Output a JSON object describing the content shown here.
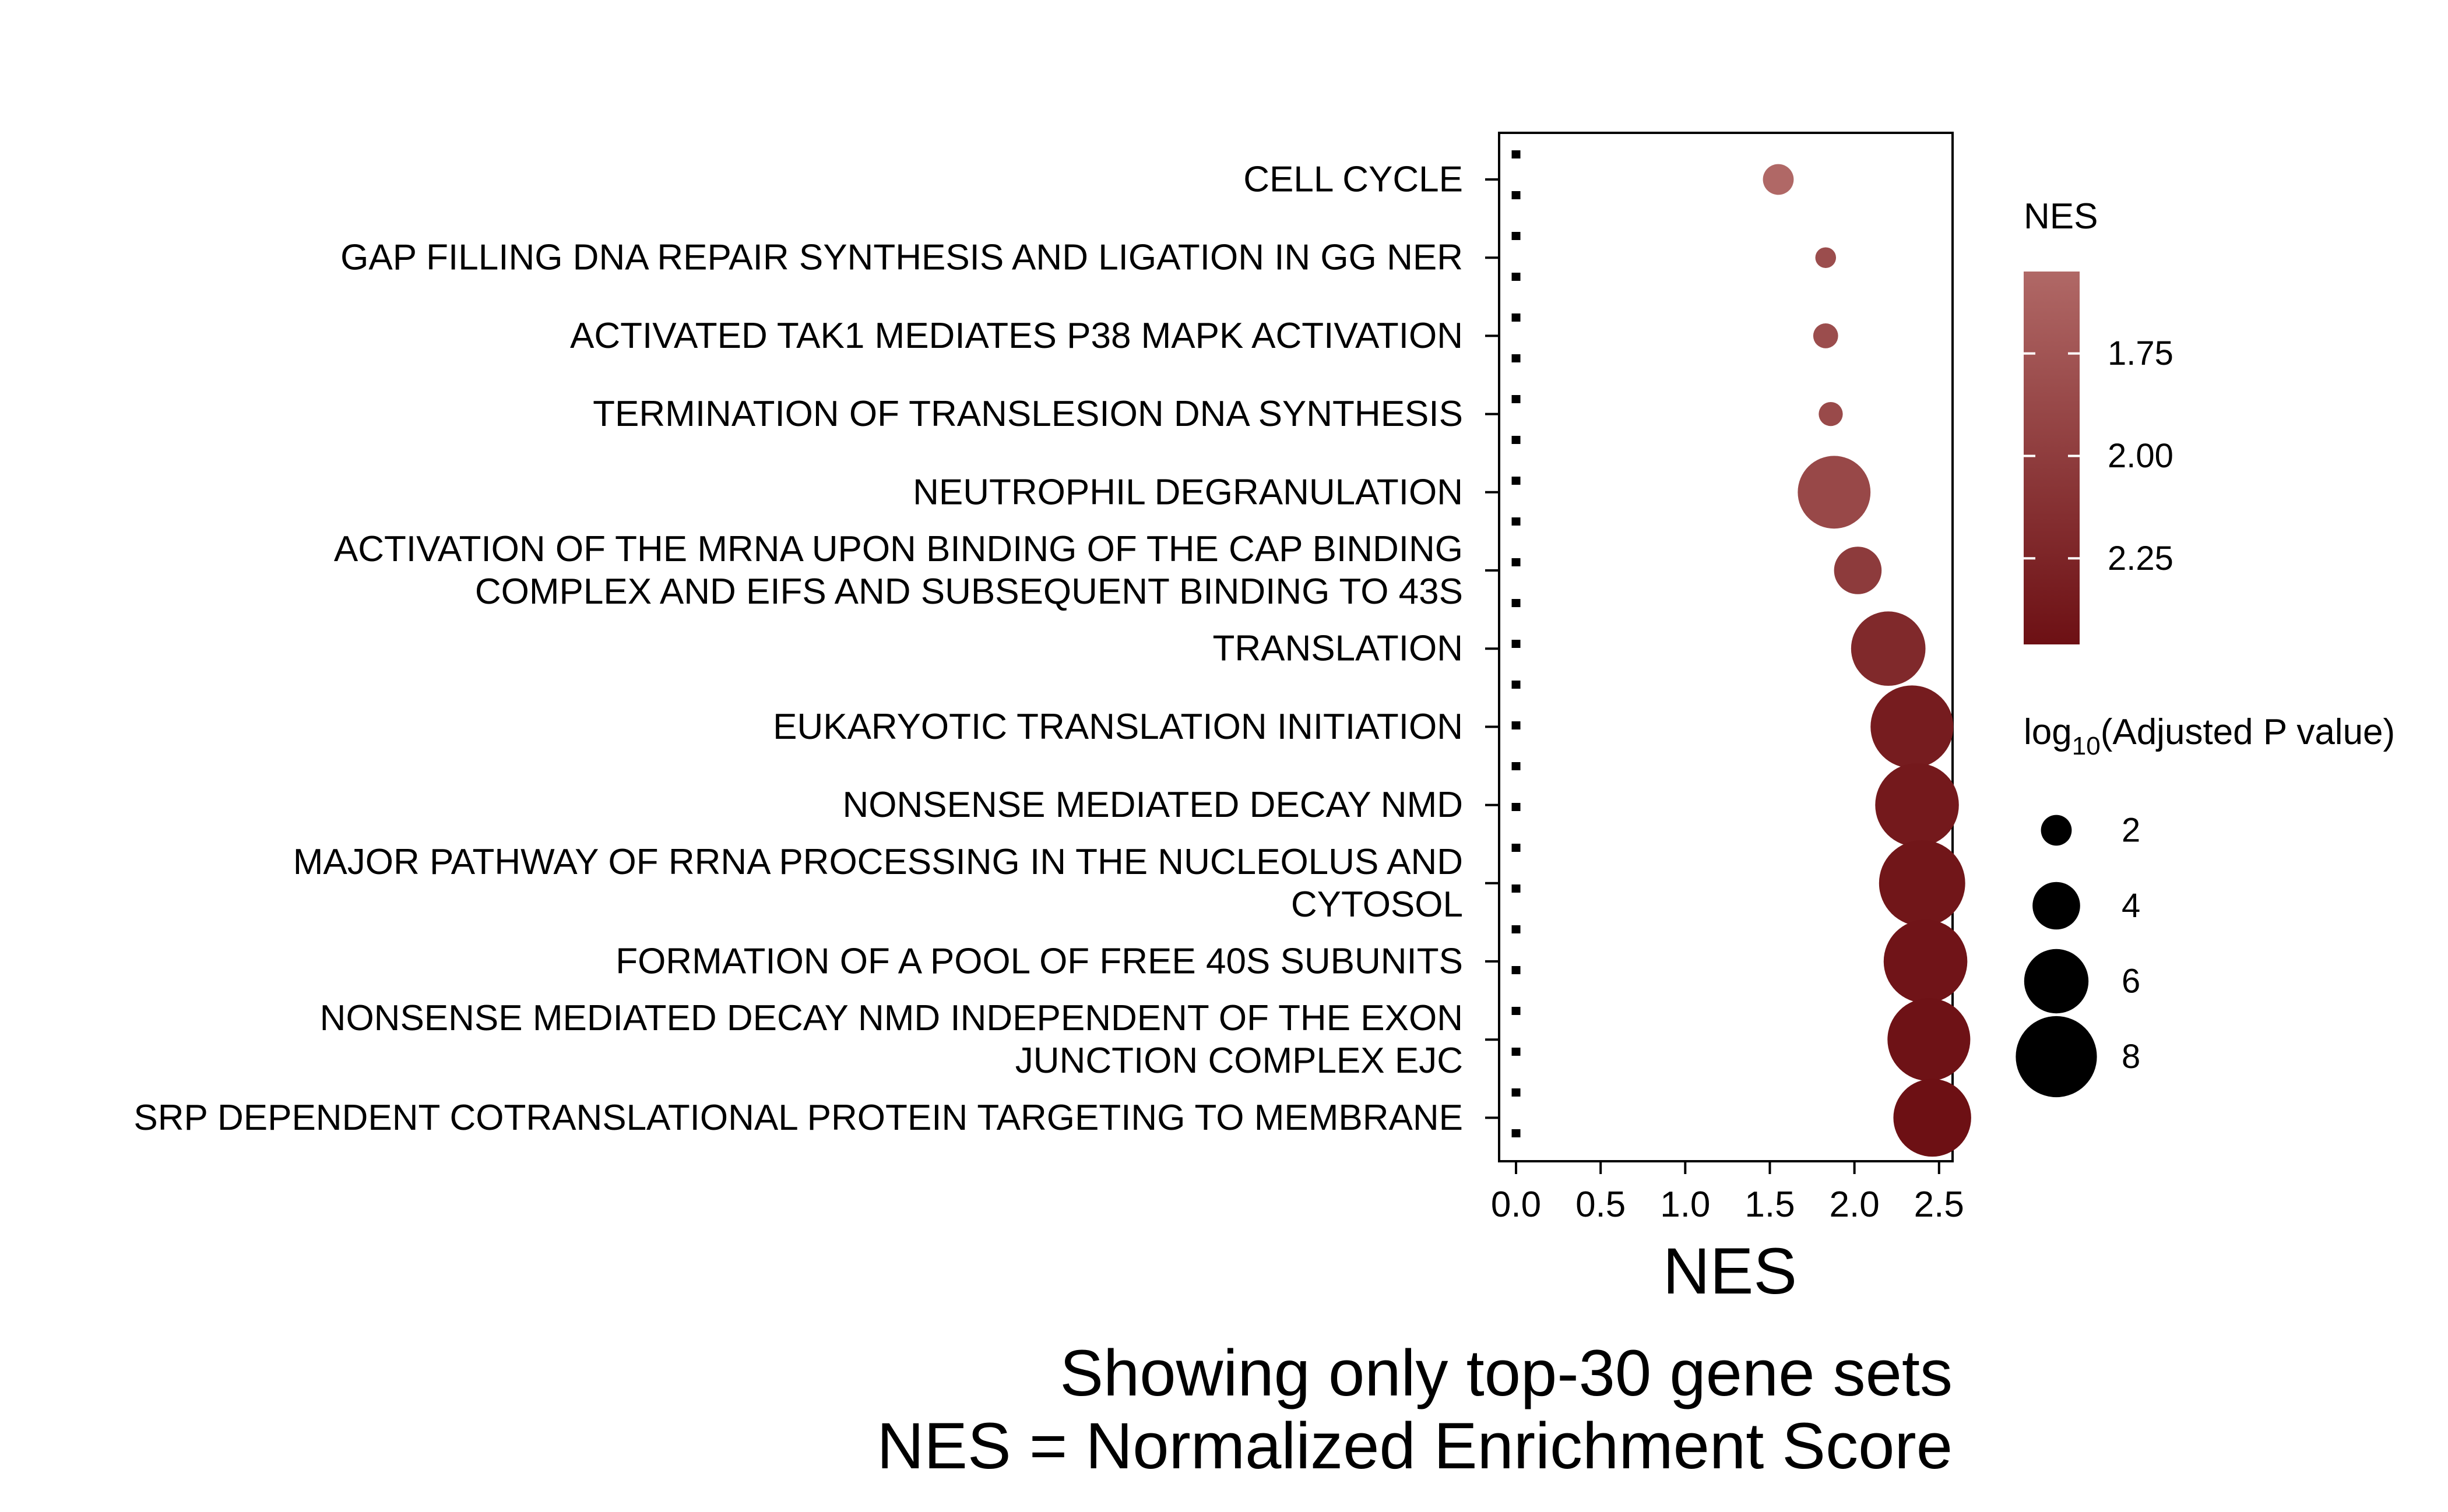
{
  "chart_data": {
    "type": "scatter",
    "xlabel": "NES",
    "ylabel": "",
    "xlim": [
      -0.1,
      2.58
    ],
    "x_ticks": [
      0.0,
      0.5,
      1.0,
      1.5,
      2.0,
      2.5
    ],
    "x_tick_labels": [
      "0.0",
      "0.5",
      "1.0",
      "1.5",
      "2.0",
      "2.5"
    ],
    "reference_line": {
      "x": 0,
      "style": "dotted"
    },
    "grid": false,
    "categories": [
      [
        "CELL CYCLE"
      ],
      [
        "GAP FILLING DNA REPAIR SYNTHESIS AND LIGATION IN GG NER"
      ],
      [
        "ACTIVATED TAK1 MEDIATES P38 MAPK ACTIVATION"
      ],
      [
        "TERMINATION OF TRANSLESION DNA SYNTHESIS"
      ],
      [
        "NEUTROPHIL DEGRANULATION"
      ],
      [
        "ACTIVATION OF THE MRNA UPON BINDING OF THE CAP BINDING",
        "COMPLEX AND EIFS AND SUBSEQUENT BINDING TO 43S"
      ],
      [
        "TRANSLATION"
      ],
      [
        "EUKARYOTIC TRANSLATION INITIATION"
      ],
      [
        "NONSENSE MEDIATED DECAY NMD"
      ],
      [
        "MAJOR PATHWAY OF RRNA PROCESSING IN THE NUCLEOLUS AND",
        "CYTOSOL"
      ],
      [
        "FORMATION OF A POOL OF FREE 40S SUBUNITS"
      ],
      [
        "NONSENSE MEDIATED DECAY NMD INDEPENDENT OF THE EXON",
        "JUNCTION COMPLEX EJC"
      ],
      [
        "SRP DEPENDENT COTRANSLATIONAL PROTEIN TARGETING TO MEMBRANE"
      ]
    ],
    "points": [
      {
        "nes": 1.55,
        "neg_log10_padj": 2.0
      },
      {
        "nes": 1.83,
        "neg_log10_padj": 0.8
      },
      {
        "nes": 1.83,
        "neg_log10_padj": 1.3
      },
      {
        "nes": 1.86,
        "neg_log10_padj": 1.2
      },
      {
        "nes": 1.88,
        "neg_log10_padj": 7.0
      },
      {
        "nes": 2.02,
        "neg_log10_padj": 4.0
      },
      {
        "nes": 2.2,
        "neg_log10_padj": 7.2
      },
      {
        "nes": 2.34,
        "neg_log10_padj": 8.2
      },
      {
        "nes": 2.37,
        "neg_log10_padj": 8.3
      },
      {
        "nes": 2.4,
        "neg_log10_padj": 8.6
      },
      {
        "nes": 2.42,
        "neg_log10_padj": 8.3
      },
      {
        "nes": 2.44,
        "neg_log10_padj": 8.2
      },
      {
        "nes": 2.46,
        "neg_log10_padj": 7.6
      }
    ],
    "color_legend": {
      "title": "NES",
      "range": [
        1.55,
        2.46
      ],
      "ticks": [
        1.75,
        2.0,
        2.25
      ],
      "tick_labels": [
        "1.75",
        "2.00",
        "2.25"
      ],
      "color_low": "#b06866",
      "color_high": "#6d1014"
    },
    "size_legend": {
      "title_prefix": "log",
      "title_subscript": "10",
      "title_suffix": "(Adjusted P value)",
      "values": [
        2,
        4,
        6,
        8
      ],
      "labels": [
        "2",
        "4",
        "6",
        "8"
      ]
    },
    "caption": [
      "Showing only top-30 gene sets",
      "NES = Normalized Enrichment Score"
    ],
    "legend_position": "right"
  }
}
